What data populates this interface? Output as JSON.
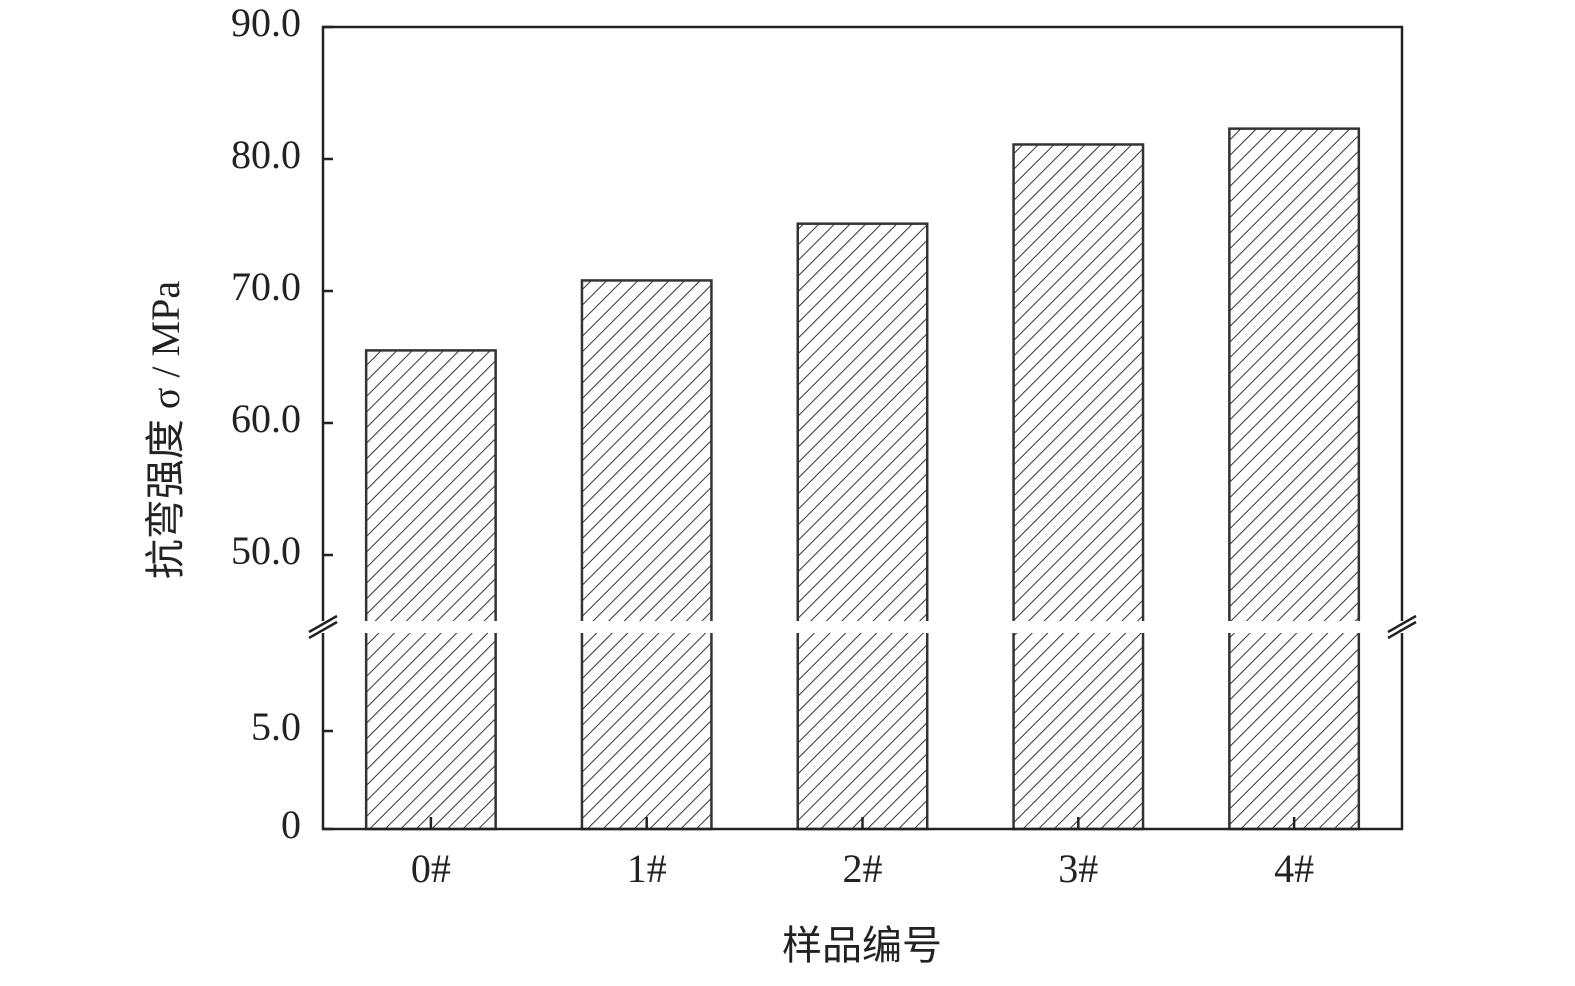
{
  "chart_data": {
    "type": "bar",
    "y_label": "抗弯强度 σ / MPa",
    "x_label": "样品编号",
    "categories": [
      "0#",
      "1#",
      "2#",
      "3#",
      "4#"
    ],
    "values": [
      65.5,
      70.8,
      75.1,
      81.1,
      82.3
    ],
    "color": "#333333",
    "hatch": true,
    "ylim": [
      0,
      90
    ],
    "y_break": [
      10,
      45
    ],
    "yticks": [
      0,
      {
        "value": 5,
        "label": "5.0"
      },
      {
        "value": 50,
        "label": "50.0"
      },
      {
        "value": 60,
        "label": "60.0"
      },
      {
        "value": 70,
        "label": "70.0"
      },
      {
        "value": 80,
        "label": "80.0"
      },
      {
        "value": 90,
        "label": "90.0"
      }
    ],
    "grid": false
  }
}
